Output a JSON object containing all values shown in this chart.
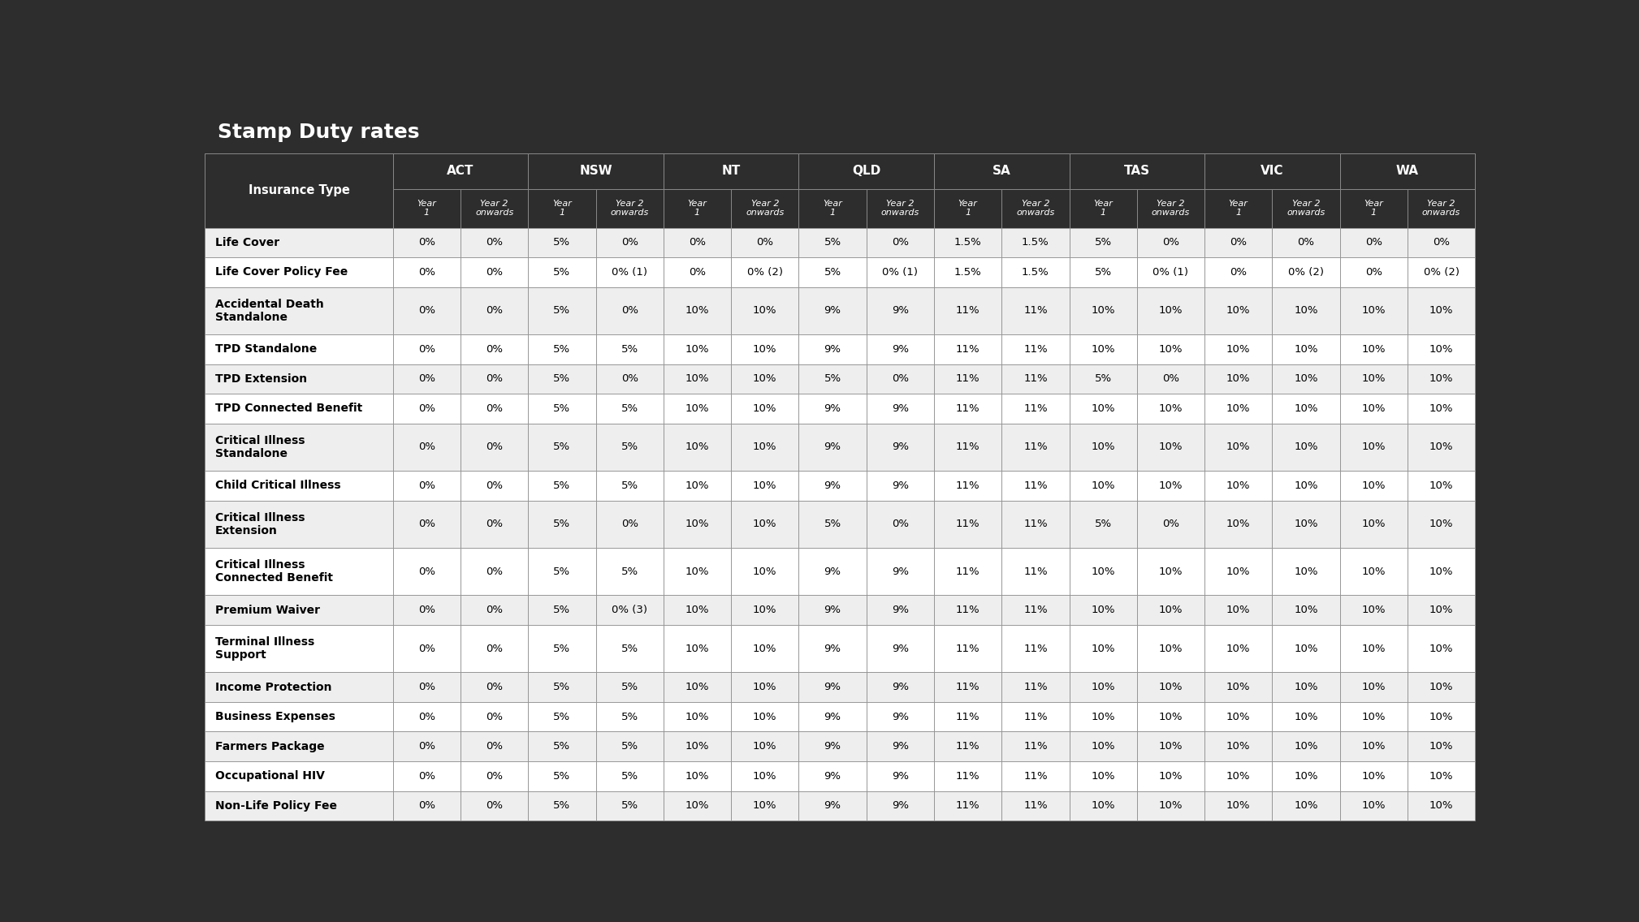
{
  "title": "Stamp Duty rates",
  "title_bg": "#2d2d2d",
  "title_text_color": "#ffffff",
  "header_bg": "#2d2d2d",
  "header_text_color": "#ffffff",
  "row_bg_odd": "#eeeeee",
  "row_bg_even": "#ffffff",
  "row_text_color": "#000000",
  "grid_color": "#aaaaaa",
  "states": [
    "ACT",
    "NSW",
    "NT",
    "QLD",
    "SA",
    "TAS",
    "VIC",
    "WA"
  ],
  "col_labels": [
    "Year\n1",
    "Year 2\nonwards"
  ],
  "row_labels": [
    "Life Cover",
    "Life Cover Policy Fee",
    "Accidental Death\nStandalone",
    "TPD Standalone",
    "TPD Extension",
    "TPD Connected Benefit",
    "Critical Illness\nStandalone",
    "Child Critical Illness",
    "Critical Illness\nExtension",
    "Critical Illness\nConnected Benefit",
    "Premium Waiver",
    "Terminal Illness\nSupport",
    "Income Protection",
    "Business Expenses",
    "Farmers Package",
    "Occupational HIV",
    "Non-Life Policy Fee"
  ],
  "data": [
    [
      "0%",
      "0%",
      "5%",
      "0%",
      "0%",
      "0%",
      "5%",
      "0%",
      "1.5%",
      "1.5%",
      "5%",
      "0%",
      "0%",
      "0%",
      "0%",
      "0%"
    ],
    [
      "0%",
      "0%",
      "5%",
      "0% (1)",
      "0%",
      "0% (2)",
      "5%",
      "0% (1)",
      "1.5%",
      "1.5%",
      "5%",
      "0% (1)",
      "0%",
      "0% (2)",
      "0%",
      "0% (2)"
    ],
    [
      "0%",
      "0%",
      "5%",
      "0%",
      "10%",
      "10%",
      "9%",
      "9%",
      "11%",
      "11%",
      "10%",
      "10%",
      "10%",
      "10%",
      "10%",
      "10%"
    ],
    [
      "0%",
      "0%",
      "5%",
      "5%",
      "10%",
      "10%",
      "9%",
      "9%",
      "11%",
      "11%",
      "10%",
      "10%",
      "10%",
      "10%",
      "10%",
      "10%"
    ],
    [
      "0%",
      "0%",
      "5%",
      "0%",
      "10%",
      "10%",
      "5%",
      "0%",
      "11%",
      "11%",
      "5%",
      "0%",
      "10%",
      "10%",
      "10%",
      "10%"
    ],
    [
      "0%",
      "0%",
      "5%",
      "5%",
      "10%",
      "10%",
      "9%",
      "9%",
      "11%",
      "11%",
      "10%",
      "10%",
      "10%",
      "10%",
      "10%",
      "10%"
    ],
    [
      "0%",
      "0%",
      "5%",
      "5%",
      "10%",
      "10%",
      "9%",
      "9%",
      "11%",
      "11%",
      "10%",
      "10%",
      "10%",
      "10%",
      "10%",
      "10%"
    ],
    [
      "0%",
      "0%",
      "5%",
      "5%",
      "10%",
      "10%",
      "9%",
      "9%",
      "11%",
      "11%",
      "10%",
      "10%",
      "10%",
      "10%",
      "10%",
      "10%"
    ],
    [
      "0%",
      "0%",
      "5%",
      "0%",
      "10%",
      "10%",
      "5%",
      "0%",
      "11%",
      "11%",
      "5%",
      "0%",
      "10%",
      "10%",
      "10%",
      "10%"
    ],
    [
      "0%",
      "0%",
      "5%",
      "5%",
      "10%",
      "10%",
      "9%",
      "9%",
      "11%",
      "11%",
      "10%",
      "10%",
      "10%",
      "10%",
      "10%",
      "10%"
    ],
    [
      "0%",
      "0%",
      "5%",
      "0% (3)",
      "10%",
      "10%",
      "9%",
      "9%",
      "11%",
      "11%",
      "10%",
      "10%",
      "10%",
      "10%",
      "10%",
      "10%"
    ],
    [
      "0%",
      "0%",
      "5%",
      "5%",
      "10%",
      "10%",
      "9%",
      "9%",
      "11%",
      "11%",
      "10%",
      "10%",
      "10%",
      "10%",
      "10%",
      "10%"
    ],
    [
      "0%",
      "0%",
      "5%",
      "5%",
      "10%",
      "10%",
      "9%",
      "9%",
      "11%",
      "11%",
      "10%",
      "10%",
      "10%",
      "10%",
      "10%",
      "10%"
    ],
    [
      "0%",
      "0%",
      "5%",
      "5%",
      "10%",
      "10%",
      "9%",
      "9%",
      "11%",
      "11%",
      "10%",
      "10%",
      "10%",
      "10%",
      "10%",
      "10%"
    ],
    [
      "0%",
      "0%",
      "5%",
      "5%",
      "10%",
      "10%",
      "9%",
      "9%",
      "11%",
      "11%",
      "10%",
      "10%",
      "10%",
      "10%",
      "10%",
      "10%"
    ],
    [
      "0%",
      "0%",
      "5%",
      "5%",
      "10%",
      "10%",
      "9%",
      "9%",
      "11%",
      "11%",
      "10%",
      "10%",
      "10%",
      "10%",
      "10%",
      "10%"
    ],
    [
      "0%",
      "0%",
      "5%",
      "5%",
      "10%",
      "10%",
      "9%",
      "9%",
      "11%",
      "11%",
      "10%",
      "10%",
      "10%",
      "10%",
      "10%",
      "10%"
    ]
  ],
  "two_line_rows": [
    2,
    6,
    8,
    9,
    11
  ],
  "title_fontsize": 18,
  "state_fontsize": 11,
  "year_fontsize": 8,
  "label_fontsize": 10,
  "data_fontsize": 9.5,
  "ins_type_fontsize": 10.5
}
